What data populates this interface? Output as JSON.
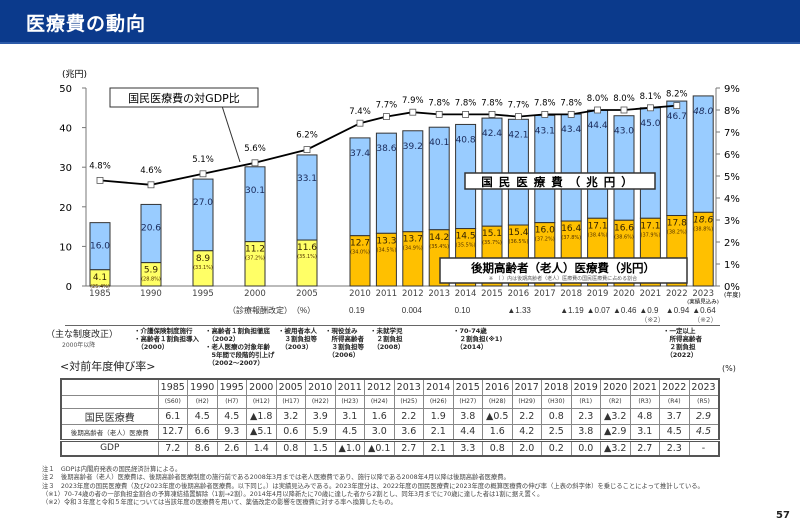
{
  "header": {
    "title": "医療費の動向"
  },
  "chart_data": {
    "type": "bar",
    "ylabel_left": "(兆円)",
    "ylim_left": [
      0,
      50
    ],
    "yticks_left": [
      "0",
      "10",
      "20",
      "30",
      "40",
      "50"
    ],
    "ylim_right": [
      0,
      9
    ],
    "yticks_right": [
      "0%",
      "1%",
      "2%",
      "3%",
      "4%",
      "5%",
      "6%",
      "7%",
      "8%",
      "9%"
    ],
    "x_unit": "(年度)",
    "categories": [
      "1985",
      "1990",
      "1995",
      "2000",
      "2005",
      "2010",
      "2011",
      "2012",
      "2013",
      "2014",
      "2015",
      "2016",
      "2017",
      "2018",
      "2019",
      "2020",
      "2021",
      "2022",
      "2023"
    ],
    "x_note_2023": "(実績見込み)",
    "series": [
      {
        "name": "国民医療費（兆円）",
        "type": "bar",
        "color": "#99ccff",
        "values": [
          16.0,
          20.6,
          27.0,
          30.1,
          33.1,
          37.4,
          38.6,
          39.2,
          40.1,
          40.8,
          42.4,
          42.1,
          43.1,
          43.4,
          44.4,
          43.0,
          45.0,
          46.7,
          48.0
        ]
      },
      {
        "name": "後期高齢者（老人）医療費（兆円）",
        "type": "bar",
        "colors": [
          "#ffff66",
          "#ffc000"
        ],
        "values": [
          4.1,
          5.9,
          8.9,
          11.2,
          11.6,
          12.7,
          13.3,
          13.7,
          14.2,
          14.5,
          15.1,
          15.4,
          16.0,
          16.4,
          17.1,
          16.6,
          17.1,
          17.8,
          18.6
        ],
        "share_labels": [
          "25.4%",
          "28.8%",
          "33.1%",
          "37.2%",
          "35.1%",
          "34.0%",
          "34.5%",
          "34.9%",
          "35.4%",
          "35.5%",
          "35.7%",
          "36.5%",
          "37.2%",
          "37.8%",
          "38.4%",
          "38.6%",
          "37.9%",
          "38.2%",
          "38.8%"
        ]
      },
      {
        "name": "国民医療費の対GDP比",
        "type": "line",
        "axis": "right",
        "color": "#000000",
        "values": [
          4.8,
          4.6,
          5.1,
          5.6,
          6.2,
          7.4,
          7.7,
          7.9,
          7.8,
          7.8,
          7.8,
          7.7,
          7.8,
          7.8,
          8.0,
          8.0,
          8.1,
          8.2,
          null
        ]
      }
    ],
    "legend_note": "※　（ ）内は後期高齢者（老人）医療費の国民医療費に占める割合"
  },
  "revision": {
    "label": "（診療報酬改定）　（%）",
    "items": [
      {
        "year": "2010",
        "value": "0.19"
      },
      {
        "year": "2012",
        "value": "0.004"
      },
      {
        "year": "2014",
        "value": "0.10"
      },
      {
        "year": "2016",
        "value": "▲1.33"
      },
      {
        "year": "2018",
        "value": "▲1.19"
      },
      {
        "year": "2019",
        "value": "▲0.07"
      },
      {
        "year": "2020",
        "value": "▲0.46"
      },
      {
        "year": "2021",
        "value": "▲0.9",
        "note": "（※2）"
      },
      {
        "year": "2022",
        "value": "▲0.94"
      },
      {
        "year": "2023",
        "value": "▲0.64",
        "note": "（※2）"
      }
    ]
  },
  "reforms": {
    "label": "（主な制度改正）",
    "sublabel": "2000年以降",
    "items": [
      "・介護保険制度施行\n・高齢者１割負担導入\n　（2000）",
      "・高齢者１割負担徹底\n　（2002）\n・老人医療の対象年齢\n　5年間で段階的引上げ\n　（2002～2007）",
      "・被用者本人\n　３割負担等\n　（2003）",
      "・現役並み\n　所得高齢者\n　３割負担等\n　（2006）",
      "・未就学児\n　２割負担\n　（2008）",
      "・70-74歳\n　２割負担(※1)\n　（2014）",
      "・一定以上\n　所得高齢者\n　２割負担\n　（2022）"
    ]
  },
  "growth_table": {
    "title": "<対前年度伸び率>",
    "unit": "(%)",
    "years": [
      "1985",
      "1990",
      "1995",
      "2000",
      "2005",
      "2010",
      "2011",
      "2012",
      "2013",
      "2014",
      "2015",
      "2016",
      "2017",
      "2018",
      "2019",
      "2020",
      "2021",
      "2022",
      "2023"
    ],
    "eras": [
      "(S60)",
      "(H2)",
      "(H7)",
      "(H12)",
      "(H17)",
      "(H22)",
      "(H23)",
      "(H24)",
      "(H25)",
      "(H26)",
      "(H27)",
      "(H28)",
      "(H29)",
      "(H30)",
      "(R1)",
      "(R2)",
      "(R3)",
      "(R4)",
      "(R5)"
    ],
    "rows": [
      {
        "label": "国民医療費",
        "values": [
          "6.1",
          "4.5",
          "4.5",
          "▲1.8",
          "3.2",
          "3.9",
          "3.1",
          "1.6",
          "2.2",
          "1.9",
          "3.8",
          "▲0.5",
          "2.2",
          "0.8",
          "2.3",
          "▲3.2",
          "4.8",
          "3.7",
          "2.9"
        ]
      },
      {
        "label": "後期高齢者（老人）医療費",
        "values": [
          "12.7",
          "6.6",
          "9.3",
          "▲5.1",
          "0.6",
          "5.9",
          "4.5",
          "3.0",
          "3.6",
          "2.1",
          "4.4",
          "1.6",
          "4.2",
          "2.5",
          "3.8",
          "▲2.9",
          "3.1",
          "4.5",
          "4.5"
        ]
      },
      {
        "label": "GDP",
        "values": [
          "7.2",
          "8.6",
          "2.6",
          "1.4",
          "0.8",
          "1.5",
          "▲1.0",
          "▲0.1",
          "2.7",
          "2.1",
          "3.3",
          "0.8",
          "2.0",
          "0.2",
          "0.0",
          "▲3.2",
          "2.7",
          "2.3",
          "-"
        ]
      }
    ]
  },
  "notes": [
    "注１　GDPは内閣府発表の国民経済計算による。",
    "注２　後期高齢者（老人）医療費は、後期高齢者医療制度の施行前である2008年3月までは老人医療費であり、施行以降である2008年4月以降は後期高齢者医療費。",
    "注３　2023年度の国民医療費（及び2023年度の後期高齢者医療費。以下同じ。）は実績見込みである。2023年度分は、2022年度の国民医療費に2023年度の概算医療費の伸び率（上表の斜字体）を乗じることによって推計している。",
    "（※1）70-74歳の者の一部負担金割合の予算凍結措置解除（1割→2割）。2014年4月以降新たに70歳に達した者から2割とし、同年3月までに70歳に達した者は1割に据え置く。",
    "（※2）令和３年度と令和５年度については当該年度の医療費を用いて、薬価改定の影響を医療費に対する率へ換算したもの。"
  ],
  "page_number": "57"
}
